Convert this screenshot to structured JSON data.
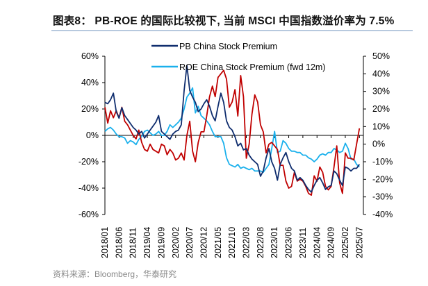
{
  "title": "图表8：  PB-ROE 的国际比较视下, 当前 MSCI 中国指数溢价率为 7.5%",
  "source": "资料来源：Bloomberg，华泰研究",
  "chart_data": {
    "type": "line",
    "x_start": "2018/01",
    "x_step": "monthly",
    "x_tick_labels": [
      "2018/01",
      "2018/06",
      "2018/11",
      "2019/04",
      "2019/09",
      "2020/02",
      "2020/07",
      "2020/12",
      "2021/05",
      "2021/10",
      "2022/03",
      "2022/08",
      "2023/01",
      "2023/06",
      "2023/11",
      "2024/04",
      "2024/09",
      "2025/02",
      "2025/07"
    ],
    "y_left": {
      "ticks": [
        "60%",
        "40%",
        "20%",
        "0%",
        "-20%",
        "-40%",
        "-60%"
      ],
      "range": [
        -60,
        60
      ]
    },
    "y_right": {
      "ticks": [
        "50%",
        "40%",
        "30%",
        "20%",
        "10%",
        "0%",
        "-10%",
        "-20%",
        "-30%",
        "-40%"
      ],
      "range": [
        -40,
        50
      ]
    },
    "grid": false,
    "legend_placement": "top",
    "series": [
      {
        "name": "PB China Stock Premium",
        "axis": "left",
        "color": "#0f2d6e",
        "values": [
          25,
          24,
          27,
          32,
          18,
          13,
          21,
          15,
          12,
          9,
          6,
          4,
          1,
          3,
          -2,
          1,
          4,
          7,
          10,
          15,
          3,
          1,
          -1,
          -3,
          1,
          3,
          4,
          8,
          34,
          53,
          34,
          29,
          25,
          18,
          20,
          24,
          27,
          22,
          15,
          11,
          22,
          32,
          25,
          11,
          6,
          4,
          -1,
          -8,
          -6,
          -11,
          -10,
          -15,
          -18,
          -20,
          -22,
          -31,
          -27,
          -17,
          -10,
          -20,
          -25,
          -34,
          -22,
          -17,
          -13,
          -20,
          -25,
          -27,
          -34,
          -32,
          -34,
          -38,
          -41,
          -43,
          -38,
          -34,
          -32,
          -36,
          -41,
          -39,
          -38,
          -27,
          -29,
          -34,
          -38,
          -24,
          -25,
          -27,
          -25,
          -25,
          -22
        ]
      },
      {
        "name": "ROE China Stock Premium (fwd 12m)",
        "axis": "left",
        "color": "#1ab0ec",
        "values": [
          3,
          5,
          6,
          4,
          1,
          -1,
          -1,
          -2,
          -6,
          -4,
          -5,
          -7,
          -3,
          -1,
          3,
          4,
          2,
          0,
          1,
          3,
          0,
          0,
          3,
          8,
          6,
          8,
          10,
          13,
          20,
          29,
          32,
          36,
          17,
          22,
          15,
          13,
          11,
          8,
          3,
          -1,
          -1,
          -1,
          -6,
          -17,
          -22,
          -23,
          -24,
          -22,
          -25,
          -24,
          -25,
          -26,
          -25,
          -27,
          -27,
          -27,
          -28,
          -25,
          -22,
          -10,
          3,
          -13,
          -12,
          -4,
          -6,
          -10,
          -12,
          -12,
          -13,
          -13,
          -15,
          -15,
          -17,
          -18,
          -20,
          -18,
          -15,
          -14,
          -15,
          -13,
          -13,
          -10,
          -11,
          -13,
          -12,
          -6,
          -10,
          -18,
          -18,
          -22,
          -24
        ]
      },
      {
        "axis": "right",
        "color": "#c00000",
        "values": [
          21,
          12,
          19,
          15,
          19,
          15,
          21,
          13,
          11,
          8,
          5,
          3,
          8,
          1,
          -3,
          -4,
          0,
          -3,
          -4,
          -5,
          0,
          -1,
          -6,
          -3,
          -5,
          -9,
          -8,
          -5,
          -9,
          5,
          13,
          -4,
          -10,
          1,
          7,
          7,
          16,
          27,
          33,
          27,
          38,
          40,
          42,
          37,
          21,
          24,
          31,
          16,
          39,
          27,
          -8,
          0,
          17,
          28,
          24,
          11,
          7,
          -5,
          0,
          1,
          -1,
          -3,
          -12,
          -12,
          -21,
          -25,
          -24,
          -16,
          -21,
          -20,
          -21,
          -24,
          -28,
          -29,
          -18,
          -21,
          -13,
          -16,
          -24,
          -26,
          -24,
          -13,
          -1,
          -22,
          -28,
          -5,
          -8,
          -8,
          -9,
          0,
          9
        ]
      }
    ]
  }
}
